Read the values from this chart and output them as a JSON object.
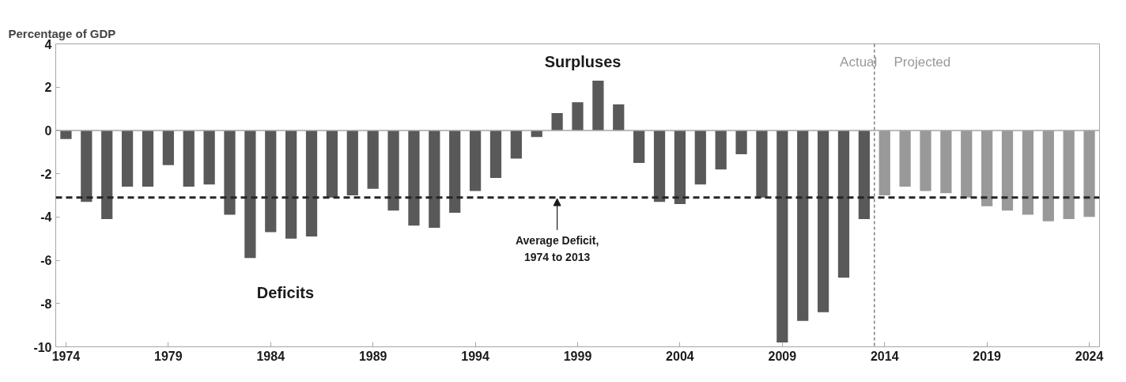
{
  "chart_data": {
    "type": "bar",
    "title": "Percentage of GDP",
    "series": [
      {
        "color": "#595959",
        "x": [
          1974,
          1975,
          1976,
          1977,
          1978,
          1979,
          1980,
          1981,
          1982,
          1983,
          1984,
          1985,
          1986,
          1987,
          1988,
          1989,
          1990,
          1991,
          1992,
          1993,
          1994,
          1995,
          1996,
          1997,
          1998,
          1999,
          2000,
          2001,
          2002,
          2003,
          2004,
          2005,
          2006,
          2007,
          2008,
          2009,
          2010,
          2011,
          2012,
          2013
        ],
        "values": [
          -0.4,
          -3.3,
          -4.1,
          -2.6,
          -2.6,
          -1.6,
          -2.6,
          -2.5,
          -3.9,
          -5.9,
          -4.7,
          -5.0,
          -4.9,
          -3.1,
          -3.0,
          -2.7,
          -3.7,
          -4.4,
          -4.5,
          -3.8,
          -2.8,
          -2.2,
          -1.3,
          -0.3,
          0.8,
          1.3,
          2.3,
          1.2,
          -1.5,
          -3.3,
          -3.4,
          -2.5,
          -1.8,
          -1.1,
          -3.1,
          -9.8,
          -8.8,
          -8.4,
          -6.8,
          -4.1
        ]
      },
      {
        "color": "#999999",
        "x": [
          2014,
          2015,
          2016,
          2017,
          2018,
          2019,
          2020,
          2021,
          2022,
          2023,
          2024
        ],
        "values": [
          -3.0,
          -2.6,
          -2.8,
          -2.9,
          -3.1,
          -3.5,
          -3.7,
          -3.9,
          -4.2,
          -4.1,
          -4.0
        ]
      }
    ],
    "xlim": [
      1973.5,
      2024.5
    ],
    "xticks": [
      1974,
      1979,
      1984,
      1989,
      1994,
      1999,
      2004,
      2009,
      2014,
      2019,
      2024
    ],
    "ylim": [
      -10,
      4
    ],
    "yticks": [
      -10,
      -8,
      -6,
      -4,
      -2,
      0,
      2,
      4
    ],
    "grid": false,
    "ref_lines": [
      {
        "axis": "y",
        "value": 0,
        "color": "#a6a6a6",
        "line_style": "solid"
      },
      {
        "axis": "y",
        "value": -3.1,
        "color": "#262626",
        "line_style": "dashed"
      },
      {
        "axis": "x",
        "value": 2013.5,
        "color": "#808080",
        "line_style": "dashed"
      }
    ],
    "annotations": [
      "Surpluses",
      "Deficits",
      {
        "text": "Average Deficit,\n1974 to 2013",
        "x": 1998,
        "y": -3.1
      },
      "Actual",
      "Projected"
    ]
  }
}
